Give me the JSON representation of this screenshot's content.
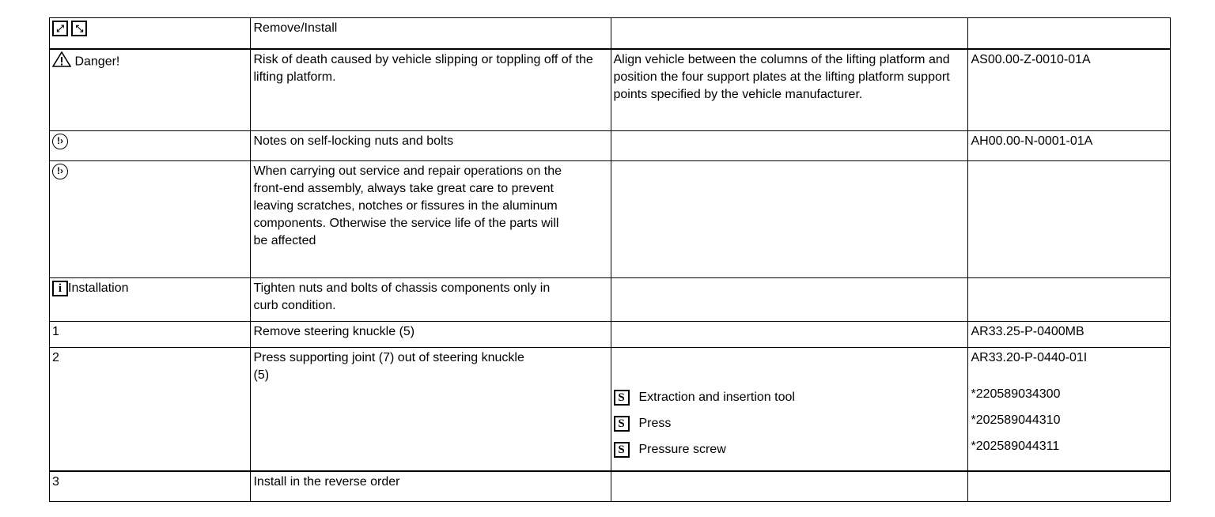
{
  "rows": [
    {
      "c1": "",
      "icons": [
        "expand-icon",
        "collapse-icon"
      ],
      "c2": "Remove/Install",
      "c3": "",
      "c4": ""
    },
    {
      "c1": "Danger!",
      "icon": "warning-triangle-icon",
      "c2": "Risk of death    caused by vehicle slipping or toppling off of the lifting platform.",
      "c3": "Align vehicle between the columns of the lifting platform and position the four support plates at the lifting platform support points specified by the vehicle manufacturer.",
      "c4": "AS00.00-Z-0010-01A"
    },
    {
      "c1": "",
      "icon": "caution-circle-icon",
      "c2": "Notes on self-locking nuts and bolts",
      "c3": "",
      "c4": "AH00.00-N-0001-01A"
    },
    {
      "c1": "",
      "icon": "caution-circle-icon",
      "c2": "When carrying out service and repair operations on the front-end assembly, always take great care to prevent leaving scratches, notches or fissures in the aluminum components. Otherwise the service life of the parts will be affected",
      "c3": "",
      "c4": ""
    },
    {
      "c1": "Installation",
      "icon": "info-icon",
      "c2": "Tighten nuts and bolts of chassis components only in curb condition.",
      "c3": "",
      "c4": ""
    },
    {
      "c1": "1",
      "c2": "Remove steering knuckle (5)",
      "c3": "",
      "c4": "AR33.25-P-0400MB"
    },
    {
      "c1": "2",
      "c2": "Press supporting joint (7) out of steering knuckle (5)",
      "c3": "",
      "c4": "AR33.20-P-0440-01I",
      "tools": [
        {
          "name": "Extraction and insertion tool",
          "number": "*220589034300"
        },
        {
          "name": "Press",
          "number": "*202589044310"
        },
        {
          "name": "Pressure screw",
          "number": "*202589044311"
        }
      ]
    },
    {
      "c1": "3",
      "c2": "Install in the reverse order",
      "c3": "",
      "c4": ""
    }
  ]
}
